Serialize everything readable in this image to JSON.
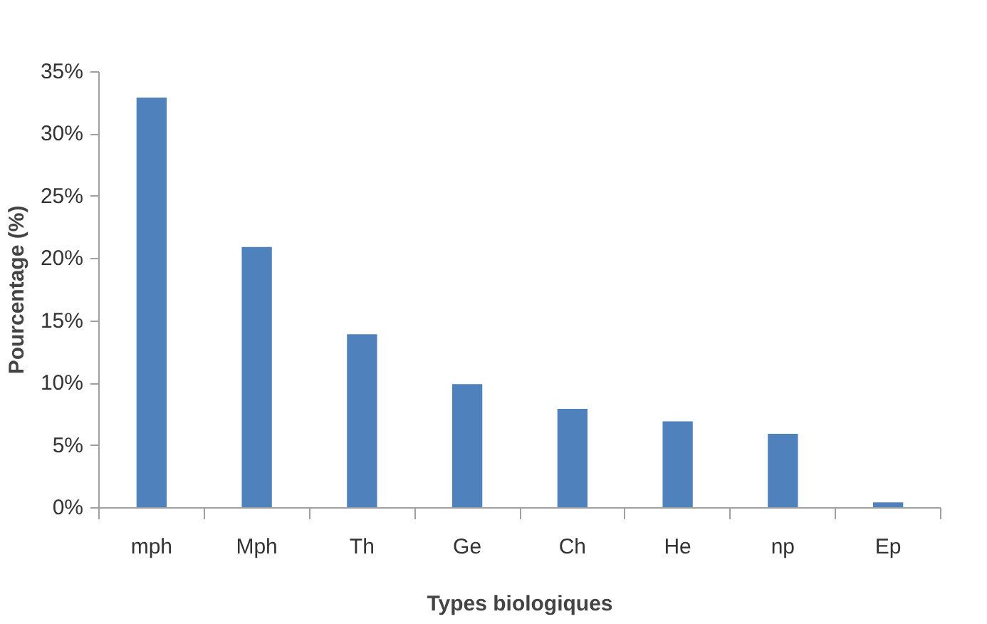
{
  "chart_data": {
    "type": "bar",
    "xlabel": "Types biologiques",
    "ylabel": "Pourcentage (%)",
    "categories": [
      "mph",
      "Mph",
      "Th",
      "Ge",
      "Ch",
      "He",
      "np",
      "Ep"
    ],
    "values": [
      33,
      21,
      14,
      10,
      8,
      7,
      6,
      0.5
    ],
    "color": "#4f81bd",
    "ylim": [
      0,
      35
    ],
    "yticks": [
      {
        "value": 0,
        "label": "0%"
      },
      {
        "value": 5,
        "label": "5%"
      },
      {
        "value": 10,
        "label": "10%"
      },
      {
        "value": 15,
        "label": "15%"
      },
      {
        "value": 20,
        "label": "20%"
      },
      {
        "value": 25,
        "label": "25%"
      },
      {
        "value": 30,
        "label": "30%"
      },
      {
        "value": 35,
        "label": "35%"
      }
    ],
    "grid": false
  }
}
